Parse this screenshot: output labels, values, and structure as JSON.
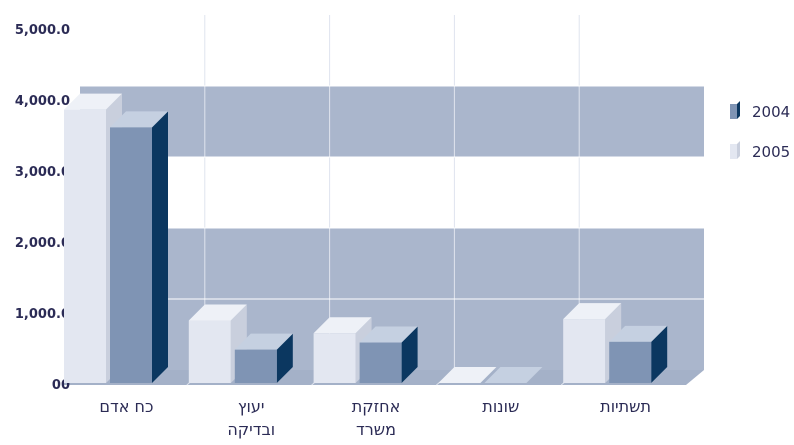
{
  "chart_data": {
    "type": "bar",
    "categories": [
      [
        "כח אדם"
      ],
      [
        "יעוץ",
        "ובדיקה"
      ],
      [
        "אחזקת",
        "משרד"
      ],
      [
        "שונות"
      ],
      [
        "תשתיות"
      ]
    ],
    "series": [
      {
        "name": "2004",
        "values": [
          3600,
          470,
          570,
          0,
          580
        ]
      },
      {
        "name": "2005",
        "values": [
          3850,
          880,
          700,
          0,
          900
        ]
      }
    ],
    "ylim": [
      0,
      5000
    ],
    "yticks": [
      "00",
      "1,000.0",
      "2,000.0",
      "3,000.0",
      "4,000.0",
      "5,000.0"
    ],
    "grid": true,
    "legend_position": "right",
    "colors": {
      "series_2004_front": "#7f94b4",
      "series_2004_top": "#c5d0e1",
      "series_2004_side": "#0b3760",
      "series_2005_front": "#e3e7f1",
      "series_2005_top": "#eef1f7",
      "series_2005_side": "#c9cfdd",
      "band_dark": "#aab6cc",
      "band_light": "#ffffff",
      "floor": "#a4b1c8"
    }
  }
}
